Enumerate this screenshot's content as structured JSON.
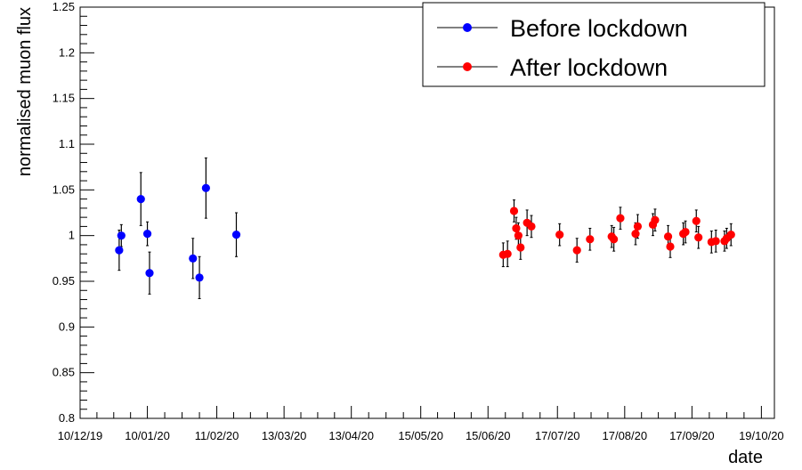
{
  "chart_data": {
    "type": "scatter",
    "title": "",
    "xlabel": "date",
    "ylabel": "normalised muon flux",
    "xlim": [
      "2019-12-10",
      "2020-10-25"
    ],
    "ylim": [
      0.8,
      1.25
    ],
    "x_ticks": [
      {
        "date": "2019-12-10",
        "label": "10/12/19"
      },
      {
        "date": "2020-01-10",
        "label": "10/01/20"
      },
      {
        "date": "2020-02-11",
        "label": "11/02/20"
      },
      {
        "date": "2020-03-13",
        "label": "13/03/20"
      },
      {
        "date": "2020-04-13",
        "label": "13/04/20"
      },
      {
        "date": "2020-05-15",
        "label": "15/05/20"
      },
      {
        "date": "2020-06-15",
        "label": "15/06/20"
      },
      {
        "date": "2020-07-17",
        "label": "17/07/20"
      },
      {
        "date": "2020-08-17",
        "label": "17/08/20"
      },
      {
        "date": "2020-09-17",
        "label": "17/09/20"
      },
      {
        "date": "2020-10-19",
        "label": "19/10/20"
      }
    ],
    "y_ticks": [
      {
        "value": 0.8,
        "label": "0.8"
      },
      {
        "value": 0.85,
        "label": "0.85"
      },
      {
        "value": 0.9,
        "label": "0.9"
      },
      {
        "value": 0.95,
        "label": "0.95"
      },
      {
        "value": 1.0,
        "label": "1"
      },
      {
        "value": 1.05,
        "label": "1.05"
      },
      {
        "value": 1.1,
        "label": "1.1"
      },
      {
        "value": 1.15,
        "label": "1.15"
      },
      {
        "value": 1.2,
        "label": "1.2"
      },
      {
        "value": 1.25,
        "label": "1.25"
      }
    ],
    "grid": false,
    "legend_position": "top-right",
    "series": [
      {
        "name": "Before lockdown",
        "color": "#0000ff",
        "points": [
          {
            "x": "2019-12-28",
            "y": 0.984,
            "err": 0.022
          },
          {
            "x": "2019-12-29",
            "y": 1.0,
            "err": 0.012
          },
          {
            "x": "2020-01-07",
            "y": 1.04,
            "err": 0.029
          },
          {
            "x": "2020-01-10",
            "y": 1.002,
            "err": 0.013
          },
          {
            "x": "2020-01-11",
            "y": 0.959,
            "err": 0.023
          },
          {
            "x": "2020-01-31",
            "y": 0.975,
            "err": 0.022
          },
          {
            "x": "2020-02-03",
            "y": 0.954,
            "err": 0.023
          },
          {
            "x": "2020-02-06",
            "y": 1.052,
            "err": 0.033
          },
          {
            "x": "2020-02-20",
            "y": 1.001,
            "err": 0.024
          }
        ]
      },
      {
        "name": "After lockdown",
        "color": "#ff0000",
        "points": [
          {
            "x": "2020-06-22",
            "y": 0.979,
            "err": 0.013
          },
          {
            "x": "2020-06-24",
            "y": 0.98,
            "err": 0.014
          },
          {
            "x": "2020-06-27",
            "y": 1.027,
            "err": 0.012
          },
          {
            "x": "2020-06-28",
            "y": 1.008,
            "err": 0.012
          },
          {
            "x": "2020-06-29",
            "y": 1.0,
            "err": 0.014
          },
          {
            "x": "2020-06-30",
            "y": 0.987,
            "err": 0.013
          },
          {
            "x": "2020-07-03",
            "y": 1.014,
            "err": 0.014
          },
          {
            "x": "2020-07-05",
            "y": 1.01,
            "err": 0.012
          },
          {
            "x": "2020-07-18",
            "y": 1.001,
            "err": 0.012
          },
          {
            "x": "2020-07-26",
            "y": 0.984,
            "err": 0.013
          },
          {
            "x": "2020-08-01",
            "y": 0.996,
            "err": 0.012
          },
          {
            "x": "2020-08-11",
            "y": 0.999,
            "err": 0.012
          },
          {
            "x": "2020-08-12",
            "y": 0.996,
            "err": 0.013
          },
          {
            "x": "2020-08-15",
            "y": 1.019,
            "err": 0.012
          },
          {
            "x": "2020-08-22",
            "y": 1.002,
            "err": 0.012
          },
          {
            "x": "2020-08-23",
            "y": 1.01,
            "err": 0.013
          },
          {
            "x": "2020-08-30",
            "y": 1.012,
            "err": 0.012
          },
          {
            "x": "2020-08-31",
            "y": 1.017,
            "err": 0.012
          },
          {
            "x": "2020-09-06",
            "y": 0.999,
            "err": 0.012
          },
          {
            "x": "2020-09-07",
            "y": 0.988,
            "err": 0.012
          },
          {
            "x": "2020-09-13",
            "y": 1.002,
            "err": 0.012
          },
          {
            "x": "2020-09-14",
            "y": 1.004,
            "err": 0.012
          },
          {
            "x": "2020-09-19",
            "y": 1.016,
            "err": 0.012
          },
          {
            "x": "2020-09-20",
            "y": 0.998,
            "err": 0.012
          },
          {
            "x": "2020-09-26",
            "y": 0.993,
            "err": 0.012
          },
          {
            "x": "2020-09-28",
            "y": 0.994,
            "err": 0.012
          },
          {
            "x": "2020-10-02",
            "y": 0.994,
            "err": 0.011
          },
          {
            "x": "2020-10-03",
            "y": 0.997,
            "err": 0.011
          },
          {
            "x": "2020-10-05",
            "y": 1.001,
            "err": 0.012
          }
        ]
      }
    ]
  }
}
